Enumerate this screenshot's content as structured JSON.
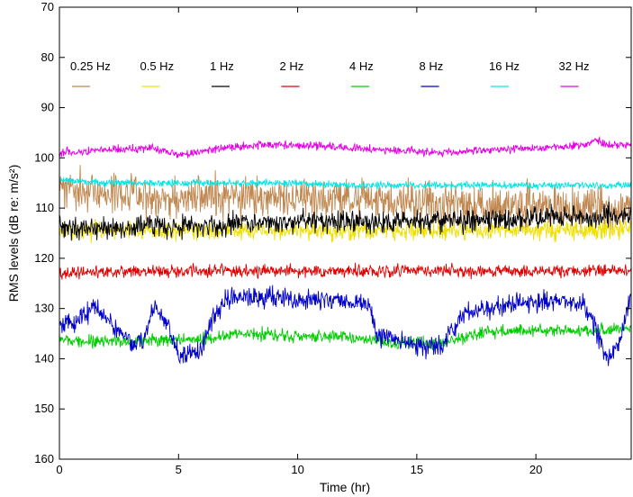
{
  "chart_data": {
    "type": "line",
    "title": "",
    "xlabel": "Time (hr)",
    "ylabel": "RMS levels (dB re: m/s²)",
    "xlim": [
      0,
      24
    ],
    "ylim": [
      70,
      160
    ],
    "y_inverted": true,
    "xticks": [
      0,
      5,
      10,
      15,
      20
    ],
    "yticks": [
      70,
      80,
      90,
      100,
      110,
      120,
      130,
      140,
      150,
      160
    ],
    "grid": false,
    "legend": "top",
    "series": [
      {
        "name": "0.25 Hz",
        "color": "#c08850",
        "noise": 2.0,
        "seed": 11,
        "x": [
          0,
          1,
          2,
          3,
          4,
          5,
          6,
          8,
          10,
          12,
          14,
          16,
          18,
          20,
          22,
          24
        ],
        "y": [
          106,
          107,
          106.5,
          107,
          107.5,
          108,
          107.5,
          108,
          108,
          108,
          108.5,
          109,
          109.5,
          109.5,
          110,
          110.5
        ]
      },
      {
        "name": "0.5 Hz",
        "color": "#f0e000",
        "noise": 0.9,
        "seed": 23,
        "x": [
          0,
          2,
          4,
          6,
          8,
          10,
          12,
          14,
          16,
          18,
          20,
          22,
          24
        ],
        "y": [
          114.5,
          114.5,
          114.5,
          114.5,
          114.5,
          114.5,
          114.5,
          114.5,
          114.5,
          114.5,
          114.5,
          114.5,
          114
        ]
      },
      {
        "name": "1 Hz",
        "color": "#000000",
        "noise": 1.1,
        "seed": 37,
        "x": [
          0,
          2,
          4,
          6,
          8,
          10,
          12,
          14,
          16,
          18,
          20,
          22,
          24
        ],
        "y": [
          114,
          114,
          113.5,
          113.5,
          113,
          113,
          112.5,
          113,
          112.5,
          112.5,
          112,
          112,
          111.5
        ]
      },
      {
        "name": "2 Hz",
        "color": "#e00000",
        "noise": 0.6,
        "seed": 41,
        "x": [
          0,
          4,
          8,
          12,
          16,
          20,
          24
        ],
        "y": [
          123,
          122.5,
          122.5,
          122.5,
          122.5,
          122.5,
          122.5
        ]
      },
      {
        "name": "4 Hz",
        "color": "#00cc00",
        "noise": 0.6,
        "seed": 53,
        "x": [
          0,
          2,
          4,
          6,
          8,
          10,
          12,
          14,
          15,
          16,
          17,
          18,
          20,
          22,
          24
        ],
        "y": [
          136.5,
          136.5,
          136.5,
          136,
          135,
          135.5,
          135.5,
          137,
          137,
          137,
          136,
          134.5,
          134.5,
          134.5,
          134
        ]
      },
      {
        "name": "8 Hz",
        "color": "#0000cc",
        "noise": 1.0,
        "seed": 67,
        "x": [
          0,
          0.5,
          1.5,
          2,
          2.5,
          3,
          3.5,
          4,
          4.5,
          5,
          6,
          6.3,
          7,
          9,
          10,
          11,
          12,
          13,
          13.3,
          14,
          15,
          16,
          16.5,
          17,
          18,
          20,
          21,
          22,
          22.5,
          23,
          23.5,
          24
        ],
        "y": [
          134,
          133,
          129.5,
          132,
          135,
          137,
          137,
          129,
          133,
          139,
          138,
          134,
          128,
          128,
          128.5,
          128,
          128.5,
          129.5,
          135,
          136,
          137.5,
          137.5,
          134,
          131,
          130,
          128.5,
          128.5,
          129,
          134,
          140,
          137,
          127
        ]
      },
      {
        "name": "16 Hz",
        "color": "#00e6e6",
        "noise": 0.35,
        "seed": 79,
        "x": [
          0,
          2,
          4,
          6,
          8,
          10,
          12,
          14,
          16,
          18,
          20,
          22,
          24
        ],
        "y": [
          104.5,
          105,
          105,
          105,
          105,
          105,
          105.5,
          105.5,
          105.5,
          105.5,
          105.5,
          105.5,
          105.5
        ]
      },
      {
        "name": "32 Hz",
        "color": "#e600e6",
        "noise": 0.4,
        "seed": 83,
        "x": [
          0,
          2,
          4,
          5,
          6,
          8,
          10,
          12,
          14,
          16,
          18,
          20,
          22,
          22.5,
          23,
          24
        ],
        "y": [
          99,
          98.5,
          98,
          99.5,
          98.5,
          97.5,
          97.5,
          98,
          98.5,
          99,
          98.5,
          98,
          97.5,
          96.5,
          97.5,
          97.5
        ]
      }
    ]
  }
}
